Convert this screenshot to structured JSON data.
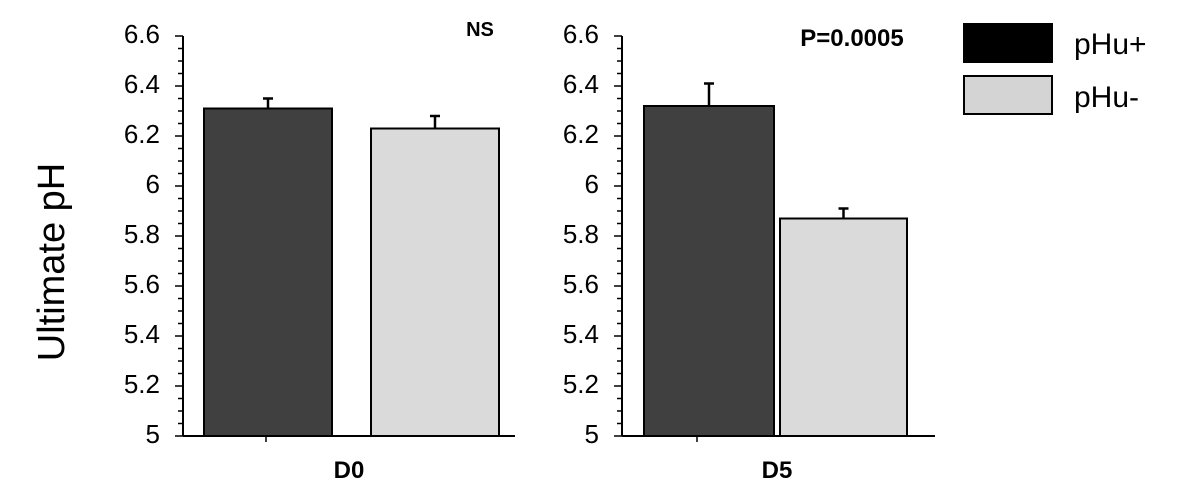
{
  "chart_data": {
    "type": "bar",
    "ylabel": "Ultimate pH",
    "ylim": [
      5,
      6.6
    ],
    "yticks": [
      "6.6",
      "6.4",
      "6.2",
      "6",
      "5.8",
      "5.6",
      "5.4",
      "5.2",
      "5"
    ],
    "grid": false,
    "legend": {
      "placement": "top-right",
      "entries": [
        {
          "label": "pHu+",
          "color": "#000000"
        },
        {
          "label": "pHu-",
          "color": "#d4d4d4"
        }
      ]
    },
    "panels": [
      {
        "category": "D0",
        "annotation": "NS",
        "series": [
          {
            "name": "pHu+",
            "value": 6.31,
            "error": 0.04,
            "color": "#404040"
          },
          {
            "name": "pHu-",
            "value": 6.23,
            "error": 0.05,
            "color": "#dadada"
          }
        ]
      },
      {
        "category": "D5",
        "annotation": "P=0.0005",
        "series": [
          {
            "name": "pHu+",
            "value": 6.32,
            "error": 0.09,
            "color": "#404040"
          },
          {
            "name": "pHu-",
            "value": 5.87,
            "error": 0.04,
            "color": "#dadada"
          }
        ]
      }
    ]
  }
}
